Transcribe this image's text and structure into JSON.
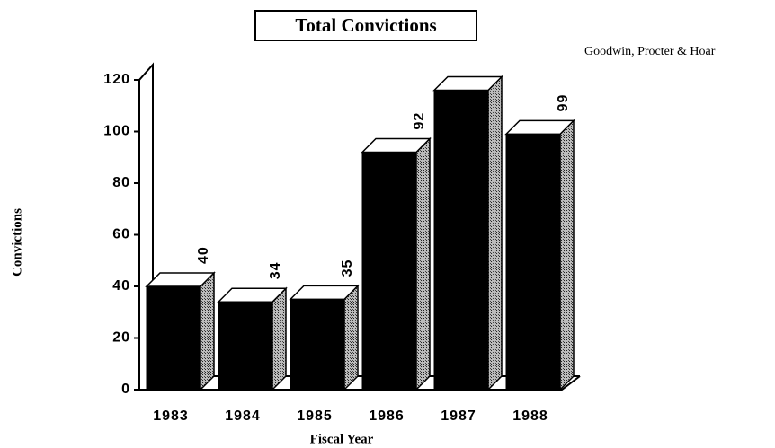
{
  "chart_data": {
    "type": "bar3d",
    "title": "Total Convictions",
    "annotation": "Goodwin, Procter & Hoar",
    "x_label": "Fiscal Year",
    "y_label": "Convictions",
    "categories": [
      "1983",
      "1984",
      "1985",
      "1986",
      "1987",
      "1988"
    ],
    "values": [
      40,
      34,
      35,
      92,
      116,
      99
    ],
    "value_labels": [
      "40",
      "34",
      "35",
      "92",
      null,
      "99"
    ],
    "color": "#000000",
    "ylim": [
      0,
      120
    ],
    "yticks": [
      0,
      20,
      40,
      60,
      80,
      100,
      120
    ]
  }
}
